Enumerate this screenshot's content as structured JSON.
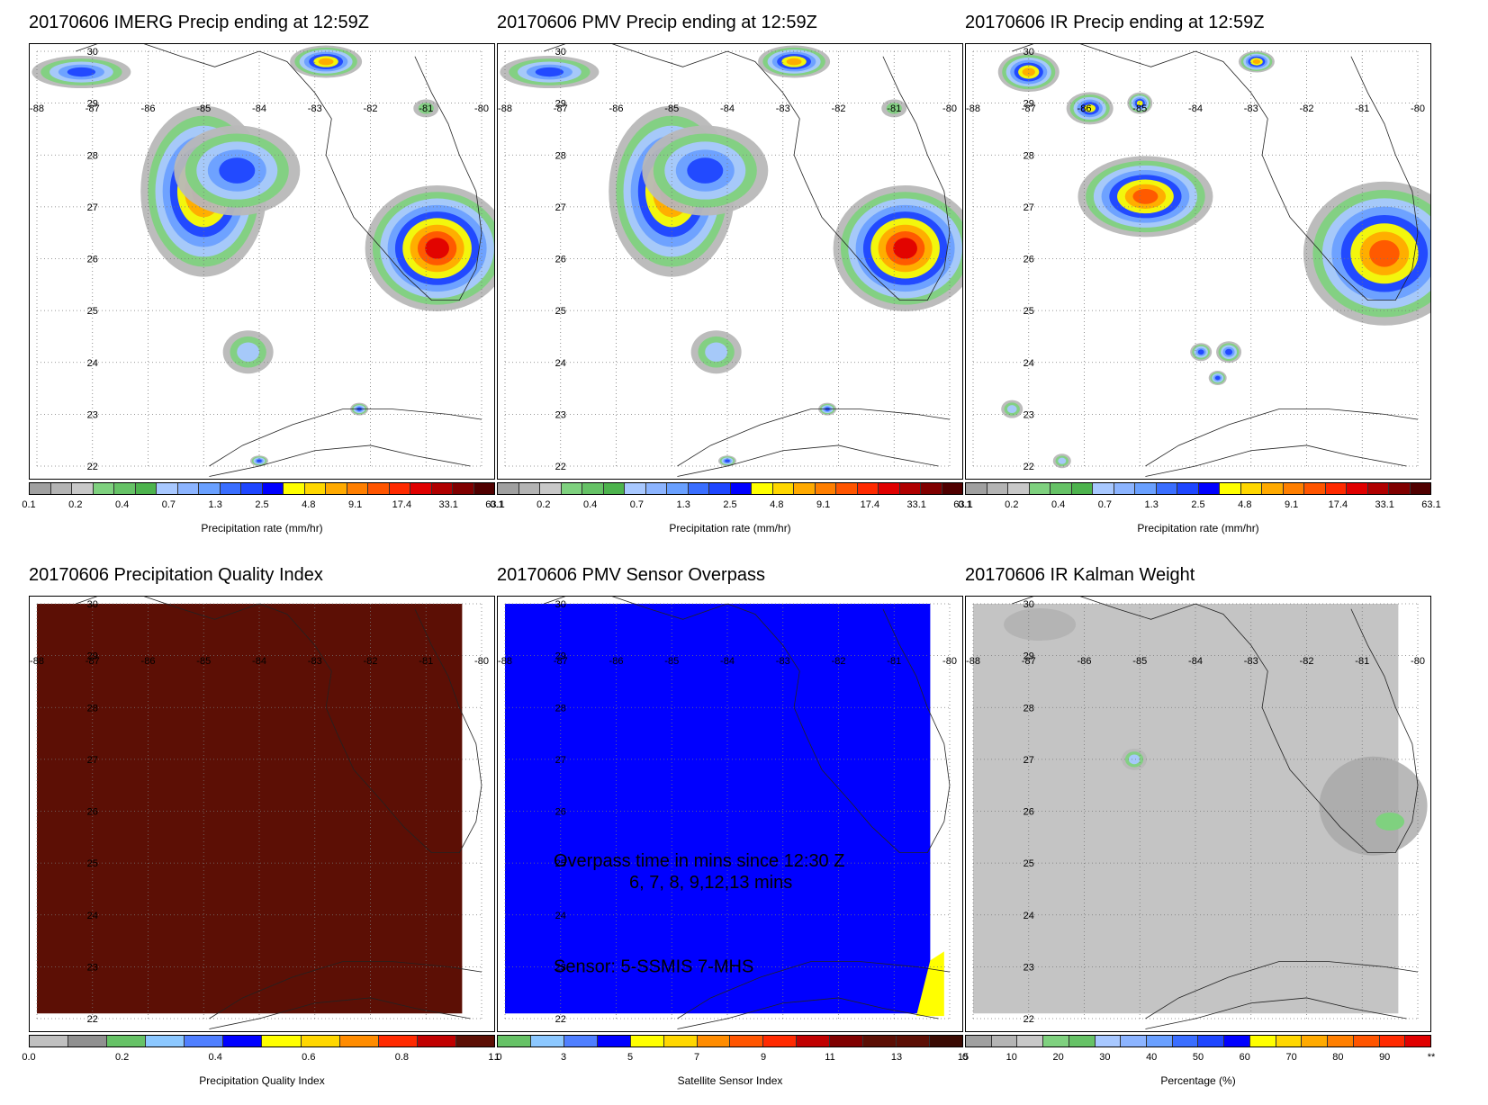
{
  "longitude_ticks": [
    "-88",
    "-87",
    "-86",
    "-85",
    "-84",
    "-83",
    "-82",
    "-81",
    "-80"
  ],
  "latitude_ticks": [
    "30",
    "29",
    "28",
    "27",
    "26",
    "25",
    "24",
    "23",
    "22"
  ],
  "panels": [
    {
      "title": "20170606 IMERG Precip ending at 12:59Z",
      "colorbar": {
        "label": "Precipitation rate (mm/hr)",
        "ticks": [
          "0.1",
          "0.2",
          "0.4",
          "0.7",
          "1.3",
          "2.5",
          "4.8",
          "9.1",
          "17.4",
          "33.1",
          "63.1"
        ],
        "colors": [
          "#a0a0a0",
          "#b4b4b4",
          "#c8c8c8",
          "#7fd17f",
          "#66c266",
          "#4db34d",
          "#a8c8ff",
          "#8cb4ff",
          "#6aa0ff",
          "#3a6eff",
          "#1e46ff",
          "#0000ff",
          "#ffff00",
          "#ffd700",
          "#ffaa00",
          "#ff7f00",
          "#ff5500",
          "#ff2a00",
          "#e00000",
          "#b00000",
          "#800000",
          "#500000"
        ]
      }
    },
    {
      "title": "20170606 PMV Precip ending at 12:59Z",
      "colorbar": {
        "label": "Precipitation rate (mm/hr)",
        "ticks": [
          "0.1",
          "0.2",
          "0.4",
          "0.7",
          "1.3",
          "2.5",
          "4.8",
          "9.1",
          "17.4",
          "33.1",
          "63.1"
        ],
        "colors": [
          "#a0a0a0",
          "#b4b4b4",
          "#c8c8c8",
          "#7fd17f",
          "#66c266",
          "#4db34d",
          "#a8c8ff",
          "#8cb4ff",
          "#6aa0ff",
          "#3a6eff",
          "#1e46ff",
          "#0000ff",
          "#ffff00",
          "#ffd700",
          "#ffaa00",
          "#ff7f00",
          "#ff5500",
          "#ff2a00",
          "#e00000",
          "#b00000",
          "#800000",
          "#500000"
        ]
      }
    },
    {
      "title": "20170606 IR Precip ending at 12:59Z",
      "colorbar": {
        "label": "Precipitation rate (mm/hr)",
        "ticks": [
          "0.1",
          "0.2",
          "0.4",
          "0.7",
          "1.3",
          "2.5",
          "4.8",
          "9.1",
          "17.4",
          "33.1",
          "63.1"
        ],
        "colors": [
          "#a0a0a0",
          "#b4b4b4",
          "#c8c8c8",
          "#7fd17f",
          "#66c266",
          "#4db34d",
          "#a8c8ff",
          "#8cb4ff",
          "#6aa0ff",
          "#3a6eff",
          "#1e46ff",
          "#0000ff",
          "#ffff00",
          "#ffd700",
          "#ffaa00",
          "#ff7f00",
          "#ff5500",
          "#ff2a00",
          "#e00000",
          "#b00000",
          "#800000",
          "#500000"
        ]
      }
    },
    {
      "title": "20170606 Precipitation Quality Index",
      "fill_color": "#5c0f05",
      "colorbar": {
        "label": "Precipitation Quality Index",
        "ticks": [
          "0.0",
          "0.2",
          "0.4",
          "0.6",
          "0.8",
          "1.0"
        ],
        "colors": [
          "#c0c0c0",
          "#909090",
          "#66c266",
          "#8cc8ff",
          "#4f7fff",
          "#0000ff",
          "#ffff00",
          "#ffd700",
          "#ff8c00",
          "#ff2a00",
          "#c00000",
          "#5c0f05"
        ]
      }
    },
    {
      "title": "20170606 PMV Sensor Overpass",
      "fill_color": "#0000ff",
      "annotation": {
        "line1": "Overpass time in mins since 12:30 Z",
        "line2": "6, 7, 8, 9,12,13 mins",
        "line3": "Sensor:   5-SSMIS  7-MHS"
      },
      "colorbar": {
        "label": "Satellite Sensor Index",
        "ticks": [
          "1",
          "3",
          "5",
          "7",
          "9",
          "11",
          "13",
          "15"
        ],
        "colors": [
          "#66c266",
          "#8cc8ff",
          "#4f7fff",
          "#0000ff",
          "#ffff00",
          "#ffd700",
          "#ff8c00",
          "#ff5500",
          "#ff2a00",
          "#c00000",
          "#800000",
          "#5c0f05",
          "#5c0f05",
          "#3a0a03"
        ]
      }
    },
    {
      "title": "20170606 IR Kalman Weight",
      "fill_color": "#c4c4c4",
      "colorbar": {
        "label": "Percentage (%)",
        "ticks": [
          "0",
          "10",
          "20",
          "30",
          "40",
          "50",
          "60",
          "70",
          "80",
          "90",
          "**"
        ],
        "colors": [
          "#a0a0a0",
          "#b4b4b4",
          "#c8c8c8",
          "#7fd17f",
          "#66c266",
          "#a8c8ff",
          "#8cb4ff",
          "#6aa0ff",
          "#3a6eff",
          "#1e46ff",
          "#0000ff",
          "#ffff00",
          "#ffd700",
          "#ffaa00",
          "#ff7f00",
          "#ff5500",
          "#ff2a00",
          "#e00000"
        ]
      }
    }
  ]
}
